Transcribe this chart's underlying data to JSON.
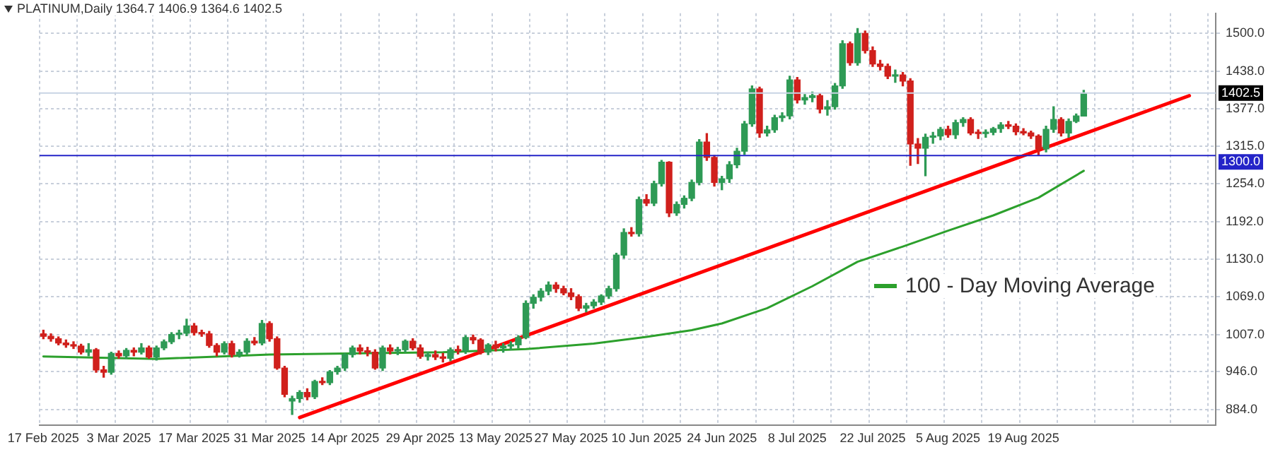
{
  "chart_data": {
    "type": "candlestick",
    "title": "PLATINUM,Daily  1364.7 1406.9 1364.6 1402.5",
    "categories": [
      "17 Feb 2025",
      null,
      null,
      null,
      null,
      null,
      null,
      null,
      null,
      null,
      "3 Mar 2025",
      null,
      null,
      null,
      null,
      null,
      null,
      null,
      null,
      null,
      "17 Mar 2025",
      null,
      null,
      null,
      null,
      null,
      null,
      null,
      null,
      null,
      "31 Mar 2025",
      null,
      null,
      null,
      null,
      null,
      null,
      null,
      null,
      null,
      "14 Apr 2025",
      null,
      null,
      null,
      null,
      null,
      null,
      null,
      null,
      null,
      "29 Apr 2025",
      null,
      null,
      null,
      null,
      null,
      null,
      null,
      null,
      null,
      "13 May 2025",
      null,
      null,
      null,
      null,
      null,
      null,
      null,
      null,
      null,
      "27 May 2025",
      null,
      null,
      null,
      null,
      null,
      null,
      null,
      null,
      null,
      "10 Jun 2025",
      null,
      null,
      null,
      null,
      null,
      null,
      null,
      null,
      null,
      "24 Jun 2025",
      null,
      null,
      null,
      null,
      null,
      null,
      null,
      null,
      null,
      "8 Jul 2025",
      null,
      null,
      null,
      null,
      null,
      null,
      null,
      null,
      null,
      "22 Jul 2025",
      null,
      null,
      null,
      null,
      null,
      null,
      null,
      null,
      null,
      "5 Aug 2025",
      null,
      null,
      null,
      null,
      null,
      null,
      null,
      null,
      null,
      "19 Aug 2025",
      null,
      null,
      null,
      null,
      null,
      null,
      null,
      null,
      null,
      null,
      null,
      null,
      null,
      null,
      null,
      null,
      null,
      null,
      null,
      null,
      null,
      null,
      null,
      null,
      null
    ],
    "ohlc": [
      [
        1008,
        1014,
        1000,
        1004
      ],
      [
        1004,
        1008,
        996,
        1000
      ],
      [
        1000,
        1003,
        990,
        993
      ],
      [
        993,
        998,
        986,
        990
      ],
      [
        990,
        995,
        984,
        988
      ],
      [
        988,
        991,
        975,
        978
      ],
      [
        978,
        992,
        972,
        982
      ],
      [
        982,
        984,
        945,
        949
      ],
      [
        949,
        955,
        937,
        945
      ],
      [
        945,
        978,
        942,
        976
      ],
      [
        976,
        980,
        968,
        972
      ],
      [
        972,
        984,
        968,
        981
      ],
      [
        981,
        985,
        972,
        978
      ],
      [
        978,
        992,
        975,
        985
      ],
      [
        985,
        988,
        968,
        970
      ],
      [
        970,
        988,
        965,
        985
      ],
      [
        985,
        998,
        982,
        995
      ],
      [
        995,
        1010,
        992,
        1007
      ],
      [
        1007,
        1014,
        1000,
        1009
      ],
      [
        1009,
        1032,
        1005,
        1021
      ],
      [
        1021,
        1025,
        1006,
        1010
      ],
      [
        1010,
        1014,
        1004,
        1008
      ],
      [
        1008,
        1012,
        986,
        989
      ],
      [
        989,
        992,
        972,
        978
      ],
      [
        978,
        995,
        975,
        992
      ],
      [
        992,
        996,
        970,
        974
      ],
      [
        974,
        982,
        970,
        978
      ],
      [
        978,
        1000,
        975,
        996
      ],
      [
        996,
        1002,
        990,
        993
      ],
      [
        993,
        1030,
        990,
        1025
      ],
      [
        1025,
        1028,
        996,
        1000
      ],
      [
        1000,
        1003,
        950,
        952
      ],
      [
        952,
        955,
        905,
        909
      ],
      [
        898,
        906,
        876,
        902
      ],
      [
        902,
        915,
        896,
        912
      ],
      [
        912,
        918,
        900,
        905
      ],
      [
        905,
        932,
        902,
        930
      ],
      [
        930,
        936,
        925,
        928
      ],
      [
        928,
        948,
        925,
        946
      ],
      [
        946,
        955,
        942,
        952
      ],
      [
        952,
        976,
        948,
        974
      ],
      [
        974,
        988,
        970,
        985
      ],
      [
        985,
        990,
        975,
        980
      ],
      [
        980,
        986,
        972,
        978
      ],
      [
        978,
        982,
        950,
        952
      ],
      [
        952,
        988,
        948,
        985
      ],
      [
        985,
        990,
        975,
        980
      ],
      [
        980,
        986,
        974,
        982
      ],
      [
        982,
        998,
        978,
        996
      ],
      [
        996,
        1000,
        982,
        985
      ],
      [
        985,
        990,
        968,
        971
      ],
      [
        971,
        978,
        965,
        974
      ],
      [
        974,
        980,
        966,
        970
      ],
      [
        970,
        976,
        962,
        968
      ],
      [
        968,
        985,
        964,
        982
      ],
      [
        982,
        988,
        975,
        980
      ],
      [
        980,
        1005,
        976,
        1002
      ],
      [
        1002,
        1006,
        992,
        998
      ],
      [
        998,
        1000,
        975,
        978
      ],
      [
        978,
        992,
        974,
        990
      ],
      [
        990,
        996,
        980,
        985
      ],
      [
        985,
        992,
        978,
        988
      ],
      [
        988,
        995,
        982,
        990
      ],
      [
        990,
        1005,
        985,
        1002
      ],
      [
        1002,
        1062,
        1000,
        1058
      ],
      [
        1058,
        1072,
        1050,
        1068
      ],
      [
        1068,
        1082,
        1062,
        1078
      ],
      [
        1078,
        1093,
        1072,
        1088
      ],
      [
        1088,
        1092,
        1076,
        1082
      ],
      [
        1082,
        1086,
        1072,
        1075
      ],
      [
        1075,
        1082,
        1064,
        1069
      ],
      [
        1069,
        1072,
        1046,
        1050
      ],
      [
        1050,
        1058,
        1044,
        1054
      ],
      [
        1054,
        1064,
        1050,
        1060
      ],
      [
        1060,
        1072,
        1056,
        1070
      ],
      [
        1070,
        1086,
        1066,
        1082
      ],
      [
        1082,
        1140,
        1078,
        1137
      ],
      [
        1137,
        1180,
        1132,
        1174
      ],
      [
        1174,
        1182,
        1168,
        1172
      ],
      [
        1172,
        1232,
        1168,
        1228
      ],
      [
        1228,
        1236,
        1218,
        1222
      ],
      [
        1222,
        1258,
        1218,
        1254
      ],
      [
        1254,
        1292,
        1250,
        1289
      ],
      [
        1289,
        1290,
        1200,
        1206
      ],
      [
        1206,
        1224,
        1202,
        1220
      ],
      [
        1220,
        1234,
        1214,
        1230
      ],
      [
        1230,
        1260,
        1226,
        1256
      ],
      [
        1256,
        1326,
        1252,
        1322
      ],
      [
        1322,
        1336,
        1292,
        1297
      ],
      [
        1297,
        1300,
        1250,
        1256
      ],
      [
        1256,
        1266,
        1244,
        1262
      ],
      [
        1262,
        1290,
        1256,
        1285
      ],
      [
        1285,
        1312,
        1280,
        1307
      ],
      [
        1307,
        1356,
        1302,
        1352
      ],
      [
        1352,
        1414,
        1348,
        1409
      ],
      [
        1409,
        1412,
        1330,
        1337
      ],
      [
        1337,
        1348,
        1332,
        1342
      ],
      [
        1342,
        1366,
        1338,
        1362
      ],
      [
        1362,
        1370,
        1356,
        1365
      ],
      [
        1365,
        1430,
        1360,
        1424
      ],
      [
        1424,
        1428,
        1386,
        1391
      ],
      [
        1391,
        1400,
        1384,
        1395
      ],
      [
        1395,
        1404,
        1388,
        1398
      ],
      [
        1398,
        1402,
        1370,
        1376
      ],
      [
        1376,
        1390,
        1366,
        1380
      ],
      [
        1380,
        1418,
        1376,
        1414
      ],
      [
        1414,
        1488,
        1410,
        1483
      ],
      [
        1483,
        1486,
        1448,
        1452
      ],
      [
        1452,
        1508,
        1448,
        1500
      ],
      [
        1500,
        1504,
        1468,
        1472
      ],
      [
        1472,
        1478,
        1446,
        1450
      ],
      [
        1450,
        1456,
        1440,
        1446
      ],
      [
        1446,
        1450,
        1426,
        1430
      ],
      [
        1430,
        1440,
        1420,
        1432
      ],
      [
        1432,
        1436,
        1414,
        1422
      ],
      [
        1422,
        1426,
        1284,
        1319
      ],
      [
        1319,
        1328,
        1287,
        1312
      ],
      [
        1312,
        1335,
        1267,
        1330
      ],
      [
        1330,
        1338,
        1320,
        1332
      ],
      [
        1332,
        1346,
        1326,
        1343
      ],
      [
        1343,
        1348,
        1330,
        1334
      ],
      [
        1334,
        1358,
        1328,
        1354
      ],
      [
        1354,
        1362,
        1348,
        1359
      ],
      [
        1359,
        1362,
        1334,
        1337
      ],
      [
        1337,
        1342,
        1328,
        1336
      ],
      [
        1336,
        1342,
        1330,
        1338
      ],
      [
        1338,
        1346,
        1334,
        1344
      ],
      [
        1344,
        1354,
        1338,
        1350
      ],
      [
        1350,
        1356,
        1344,
        1348
      ],
      [
        1348,
        1352,
        1334,
        1339
      ],
      [
        1339,
        1344,
        1334,
        1337
      ],
      [
        1337,
        1340,
        1328,
        1332
      ],
      [
        1332,
        1334,
        1300,
        1311
      ],
      [
        1311,
        1348,
        1306,
        1343
      ],
      [
        1343,
        1380,
        1338,
        1359
      ],
      [
        1359,
        1362,
        1332,
        1337
      ],
      [
        1337,
        1360,
        1330,
        1356
      ],
      [
        1356,
        1368,
        1354,
        1365
      ],
      [
        1364.7,
        1406.9,
        1364.6,
        1402.5
      ],
      null,
      null,
      null,
      null,
      null,
      null,
      null,
      null,
      null,
      null,
      null,
      null,
      null,
      null,
      null,
      null,
      null
    ],
    "series": [
      {
        "type": "line",
        "name": "100 - Day Moving Average",
        "color": "#2ca02c",
        "values": [
          971,
          null,
          null,
          null,
          null,
          null,
          null,
          null,
          null,
          null,
          null,
          null,
          null,
          null,
          null,
          967,
          null,
          null,
          null,
          null,
          null,
          null,
          null,
          null,
          null,
          null,
          null,
          null,
          null,
          null,
          974,
          null,
          null,
          null,
          null,
          null,
          null,
          null,
          null,
          null,
          null,
          null,
          null,
          null,
          null,
          null,
          null,
          null,
          null,
          null,
          null,
          null,
          null,
          978,
          null,
          null,
          null,
          null,
          null,
          null,
          null,
          null,
          null,
          null,
          983,
          null,
          null,
          null,
          null,
          null,
          null,
          null,
          null,
          992,
          null,
          null,
          null,
          null,
          null,
          null,
          1003,
          null,
          null,
          null,
          null,
          null,
          1014,
          null,
          null,
          null,
          1025,
          null,
          null,
          null,
          null,
          null,
          1050,
          null,
          null,
          null,
          null,
          null,
          1086,
          null,
          null,
          null,
          null,
          null,
          1126,
          null,
          null,
          null,
          null,
          null,
          1151,
          null,
          null,
          null,
          null,
          null,
          1177,
          null,
          null,
          null,
          null,
          null,
          1202,
          null,
          null,
          null,
          null,
          null,
          1231,
          null,
          null,
          null,
          null,
          null,
          1275,
          null,
          null,
          null,
          null,
          null,
          null,
          null,
          null,
          null,
          null,
          null,
          null,
          null,
          null,
          null,
          null,
          null
        ]
      },
      {
        "type": "line",
        "color": "#ff0000",
        "values": [
          null,
          null,
          null,
          null,
          null,
          null,
          null,
          null,
          null,
          null,
          null,
          null,
          null,
          null,
          null,
          null,
          null,
          null,
          null,
          null,
          null,
          null,
          null,
          null,
          null,
          null,
          null,
          null,
          null,
          null,
          null,
          null,
          null,
          null,
          871,
          null,
          null,
          null,
          null,
          null,
          null,
          null,
          null,
          null,
          null,
          null,
          null,
          null,
          null,
          null,
          null,
          null,
          null,
          null,
          null,
          null,
          null,
          null,
          null,
          null,
          null,
          null,
          null,
          null,
          null,
          null,
          null,
          null,
          null,
          null,
          null,
          null,
          null,
          null,
          null,
          null,
          null,
          null,
          null,
          null,
          null,
          null,
          null,
          null,
          null,
          null,
          null,
          null,
          null,
          null,
          null,
          null,
          null,
          null,
          null,
          null,
          null,
          null,
          null,
          null,
          null,
          null,
          null,
          null,
          null,
          null,
          null,
          null,
          null,
          null,
          null,
          null,
          null,
          null,
          null,
          null,
          null,
          null,
          null,
          null,
          null,
          null,
          null,
          null,
          null,
          null,
          null,
          null,
          null,
          null,
          null,
          null,
          null,
          null,
          null,
          null,
          null,
          null,
          null,
          null,
          null,
          null,
          null,
          null,
          null,
          null,
          null,
          null,
          null,
          null,
          null,
          null,
          1398,
          null,
          null,
          null
        ]
      }
    ],
    "ylim": [
      858,
      1533
    ],
    "yticks": [
      {
        "value": 884,
        "label": "884.0"
      },
      {
        "value": 946,
        "label": "946.0"
      },
      {
        "value": 1007,
        "label": "1007.0"
      },
      {
        "value": 1069,
        "label": "1069.0"
      },
      {
        "value": 1130,
        "label": "1130.0"
      },
      {
        "value": 1192,
        "label": "1192.0"
      },
      {
        "value": 1254,
        "label": "1254.0"
      },
      {
        "value": 1315,
        "label": "1315.0"
      },
      {
        "value": 1377,
        "label": "1377.0"
      },
      {
        "value": 1438,
        "label": "1438.0"
      },
      {
        "value": 1500,
        "label": "1500.0"
      }
    ],
    "ref_lines": [
      {
        "axis": "y",
        "value": 1300,
        "label": "1300.0",
        "color": "#2424c8"
      },
      {
        "axis": "y",
        "value": 1402.5,
        "label": "1402.5",
        "color": "#c8d4e4"
      }
    ],
    "grid": true,
    "legend": "right"
  }
}
